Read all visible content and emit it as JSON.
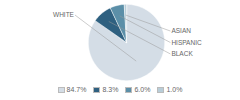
{
  "chart_data": {
    "type": "pie",
    "categories": [
      "WHITE",
      "BLACK",
      "HISPANIC",
      "ASIAN"
    ],
    "values": [
      84.7,
      8.3,
      6.0,
      1.0
    ],
    "value_labels": [
      "84.7%",
      "8.3%",
      "6.0%",
      "1.0%"
    ],
    "colors": [
      "#d4dde6",
      "#2e6080",
      "#5b8fa8",
      "#b8cdd8"
    ],
    "legend": "bottom"
  }
}
